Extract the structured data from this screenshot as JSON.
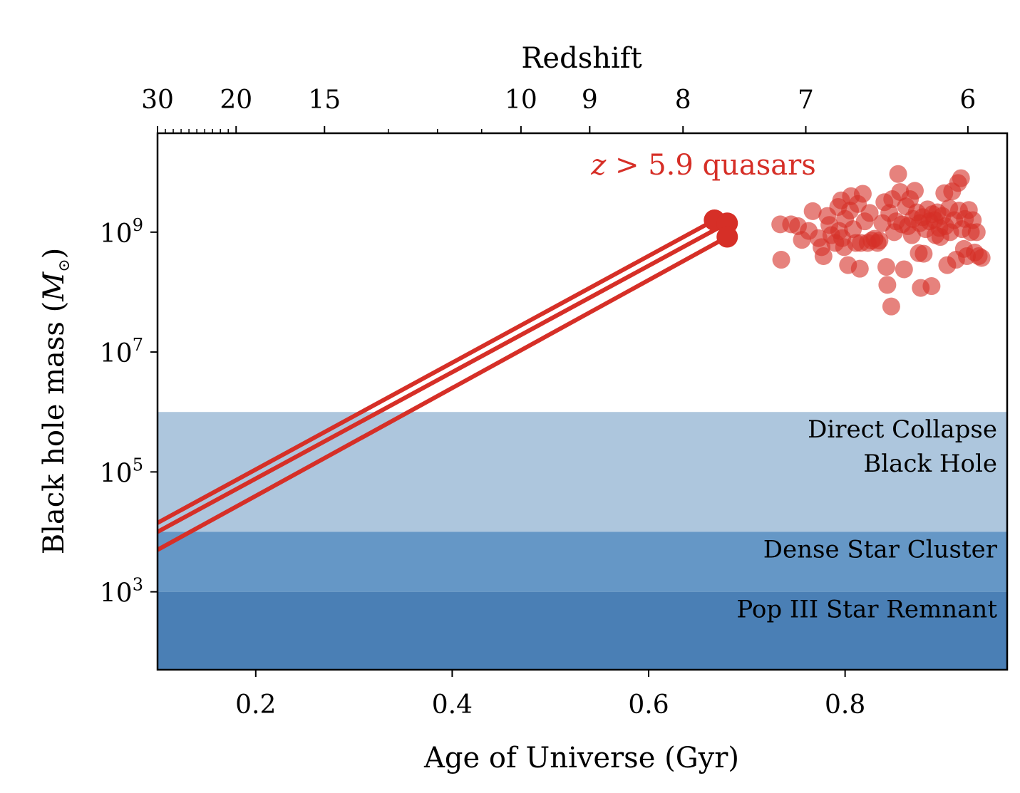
{
  "chart_data": {
    "type": "scatter",
    "xlabel": "Age of Universe (Gyr)",
    "ylabel_prefix": "Black hole mass (",
    "ylabel_symbol": "M",
    "ylabel_suffix": ")",
    "top_xlabel": "Redshift",
    "xlim": [
      0.1,
      0.965
    ],
    "ylim_log10": [
      1.7,
      10.65
    ],
    "y_scale": "log",
    "grid": false,
    "x_ticks": [
      {
        "value": 0.2,
        "label": "0.2"
      },
      {
        "value": 0.4,
        "label": "0.4"
      },
      {
        "value": 0.6,
        "label": "0.6"
      },
      {
        "value": 0.8,
        "label": "0.8"
      }
    ],
    "y_ticks": [
      {
        "value": 3,
        "base": "10",
        "exp": "3"
      },
      {
        "value": 5,
        "base": "10",
        "exp": "5"
      },
      {
        "value": 7,
        "base": "10",
        "exp": "7"
      },
      {
        "value": 9,
        "base": "10",
        "exp": "9"
      }
    ],
    "redshift_ticks": [
      {
        "age": 0.1,
        "label": "30"
      },
      {
        "age": 0.18,
        "label": "20"
      },
      {
        "age": 0.27,
        "label": "15"
      },
      {
        "age": 0.47,
        "label": "10"
      },
      {
        "age": 0.54,
        "label": "9"
      },
      {
        "age": 0.635,
        "label": "8"
      },
      {
        "age": 0.76,
        "label": "7"
      },
      {
        "age": 0.925,
        "label": "6"
      }
    ],
    "redshift_minor_ages": [
      0.108,
      0.116,
      0.124,
      0.132,
      0.14,
      0.148,
      0.156,
      0.164,
      0.172,
      0.335,
      0.385,
      0.43
    ],
    "bands": [
      {
        "name": "Pop III Star Remnant",
        "lines": [
          "Pop III Star Remnant"
        ],
        "ymin": 1.7,
        "ymax": 3,
        "color": "#4a7fb5"
      },
      {
        "name": "Dense Star Cluster",
        "lines": [
          "Dense Star Cluster"
        ],
        "ymin": 3,
        "ymax": 4,
        "color": "#6597c6"
      },
      {
        "name": "Direct Collapse Black Hole",
        "lines": [
          "Direct Collapse",
          "Black Hole"
        ],
        "ymin": 4,
        "ymax": 6,
        "color": "#adc6dd"
      }
    ],
    "growth_color": "#d62f27",
    "quasar_color": "#d62f27",
    "quasar_label_z": "z",
    "quasar_label_text": " > 5.9 quasars",
    "growth_tracks": [
      {
        "x": [
          0.1,
          0.667
        ],
        "y": [
          4.15,
          9.2
        ]
      },
      {
        "x": [
          0.1,
          0.68
        ],
        "y": [
          4.0,
          9.15
        ]
      },
      {
        "x": [
          0.1,
          0.68
        ],
        "y": [
          3.7,
          8.92
        ]
      }
    ],
    "endpoints": [
      {
        "x": 0.667,
        "y": 9.2
      },
      {
        "x": 0.68,
        "y": 9.15
      },
      {
        "x": 0.68,
        "y": 8.92
      }
    ],
    "quasars": [
      {
        "x": 0.734,
        "y": 9.13
      },
      {
        "x": 0.745,
        "y": 9.13
      },
      {
        "x": 0.752,
        "y": 9.1
      },
      {
        "x": 0.735,
        "y": 8.54
      },
      {
        "x": 0.756,
        "y": 8.87
      },
      {
        "x": 0.763,
        "y": 9.02
      },
      {
        "x": 0.767,
        "y": 9.35
      },
      {
        "x": 0.773,
        "y": 8.9
      },
      {
        "x": 0.776,
        "y": 8.75
      },
      {
        "x": 0.778,
        "y": 8.6
      },
      {
        "x": 0.782,
        "y": 9.27
      },
      {
        "x": 0.784,
        "y": 9.12
      },
      {
        "x": 0.786,
        "y": 8.95
      },
      {
        "x": 0.79,
        "y": 8.82
      },
      {
        "x": 0.793,
        "y": 9.42
      },
      {
        "x": 0.794,
        "y": 9.02
      },
      {
        "x": 0.796,
        "y": 9.53
      },
      {
        "x": 0.797,
        "y": 8.9
      },
      {
        "x": 0.799,
        "y": 8.75
      },
      {
        "x": 0.8,
        "y": 9.22
      },
      {
        "x": 0.803,
        "y": 8.45
      },
      {
        "x": 0.805,
        "y": 9.36
      },
      {
        "x": 0.806,
        "y": 9.6
      },
      {
        "x": 0.808,
        "y": 9.05
      },
      {
        "x": 0.811,
        "y": 8.82
      },
      {
        "x": 0.813,
        "y": 9.47
      },
      {
        "x": 0.815,
        "y": 8.39
      },
      {
        "x": 0.816,
        "y": 8.82
      },
      {
        "x": 0.818,
        "y": 9.64
      },
      {
        "x": 0.82,
        "y": 9.18
      },
      {
        "x": 0.823,
        "y": 8.82
      },
      {
        "x": 0.825,
        "y": 9.32
      },
      {
        "x": 0.827,
        "y": 8.86
      },
      {
        "x": 0.83,
        "y": 8.89
      },
      {
        "x": 0.833,
        "y": 8.82
      },
      {
        "x": 0.835,
        "y": 8.86
      },
      {
        "x": 0.838,
        "y": 9.15
      },
      {
        "x": 0.84,
        "y": 9.5
      },
      {
        "x": 0.842,
        "y": 8.42
      },
      {
        "x": 0.845,
        "y": 9.32
      },
      {
        "x": 0.843,
        "y": 8.12
      },
      {
        "x": 0.847,
        "y": 7.76
      },
      {
        "x": 0.848,
        "y": 9.55
      },
      {
        "x": 0.85,
        "y": 9.0
      },
      {
        "x": 0.852,
        "y": 9.18
      },
      {
        "x": 0.854,
        "y": 9.97
      },
      {
        "x": 0.856,
        "y": 9.67
      },
      {
        "x": 0.858,
        "y": 9.13
      },
      {
        "x": 0.86,
        "y": 8.38
      },
      {
        "x": 0.862,
        "y": 9.43
      },
      {
        "x": 0.864,
        "y": 9.1
      },
      {
        "x": 0.866,
        "y": 9.55
      },
      {
        "x": 0.868,
        "y": 8.95
      },
      {
        "x": 0.869,
        "y": 9.22
      },
      {
        "x": 0.871,
        "y": 9.69
      },
      {
        "x": 0.873,
        "y": 9.33
      },
      {
        "x": 0.875,
        "y": 8.65
      },
      {
        "x": 0.876,
        "y": 9.15
      },
      {
        "x": 0.877,
        "y": 8.07
      },
      {
        "x": 0.879,
        "y": 9.25
      },
      {
        "x": 0.88,
        "y": 8.64
      },
      {
        "x": 0.882,
        "y": 9.05
      },
      {
        "x": 0.884,
        "y": 9.38
      },
      {
        "x": 0.886,
        "y": 9.18
      },
      {
        "x": 0.888,
        "y": 8.1
      },
      {
        "x": 0.889,
        "y": 9.3
      },
      {
        "x": 0.891,
        "y": 9.2
      },
      {
        "x": 0.892,
        "y": 8.95
      },
      {
        "x": 0.894,
        "y": 9.33
      },
      {
        "x": 0.896,
        "y": 9.07
      },
      {
        "x": 0.897,
        "y": 8.92
      },
      {
        "x": 0.899,
        "y": 9.27
      },
      {
        "x": 0.901,
        "y": 9.65
      },
      {
        "x": 0.902,
        "y": 9.1
      },
      {
        "x": 0.904,
        "y": 8.45
      },
      {
        "x": 0.906,
        "y": 9.4
      },
      {
        "x": 0.907,
        "y": 9.0
      },
      {
        "x": 0.909,
        "y": 9.68
      },
      {
        "x": 0.911,
        "y": 9.2
      },
      {
        "x": 0.913,
        "y": 8.54
      },
      {
        "x": 0.915,
        "y": 9.82
      },
      {
        "x": 0.916,
        "y": 9.36
      },
      {
        "x": 0.918,
        "y": 9.9
      },
      {
        "x": 0.919,
        "y": 9.05
      },
      {
        "x": 0.921,
        "y": 8.72
      },
      {
        "x": 0.922,
        "y": 9.22
      },
      {
        "x": 0.924,
        "y": 8.6
      },
      {
        "x": 0.926,
        "y": 9.37
      },
      {
        "x": 0.928,
        "y": 9.0
      },
      {
        "x": 0.93,
        "y": 9.2
      },
      {
        "x": 0.932,
        "y": 8.66
      },
      {
        "x": 0.934,
        "y": 9.0
      },
      {
        "x": 0.936,
        "y": 8.6
      },
      {
        "x": 0.939,
        "y": 8.57
      }
    ]
  }
}
